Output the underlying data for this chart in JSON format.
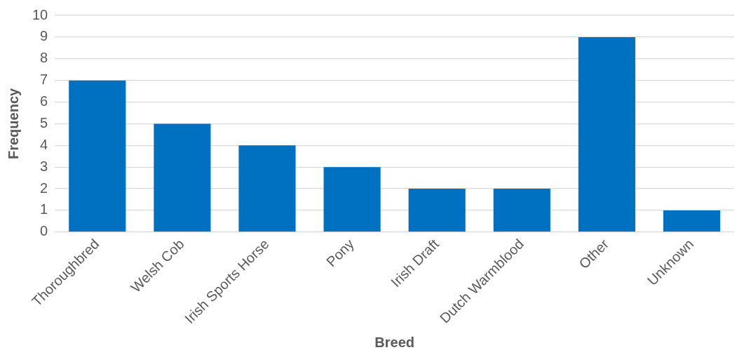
{
  "chart_data": {
    "type": "bar",
    "xlabel": "Breed",
    "ylabel": "Frequency",
    "categories": [
      "Thoroughbred",
      "Welsh Cob",
      "Irish Sports Horse",
      "Pony",
      "Irish Draft",
      "Dutch Warmblood",
      "Other",
      "Unknown"
    ],
    "values": [
      7,
      5,
      4,
      3,
      2,
      2,
      9,
      1
    ],
    "color": "#0070c0",
    "ylim": [
      0,
      10
    ],
    "yticks": [
      0,
      1,
      2,
      3,
      4,
      5,
      6,
      7,
      8,
      9,
      10
    ],
    "grid": "y",
    "legend": false
  }
}
